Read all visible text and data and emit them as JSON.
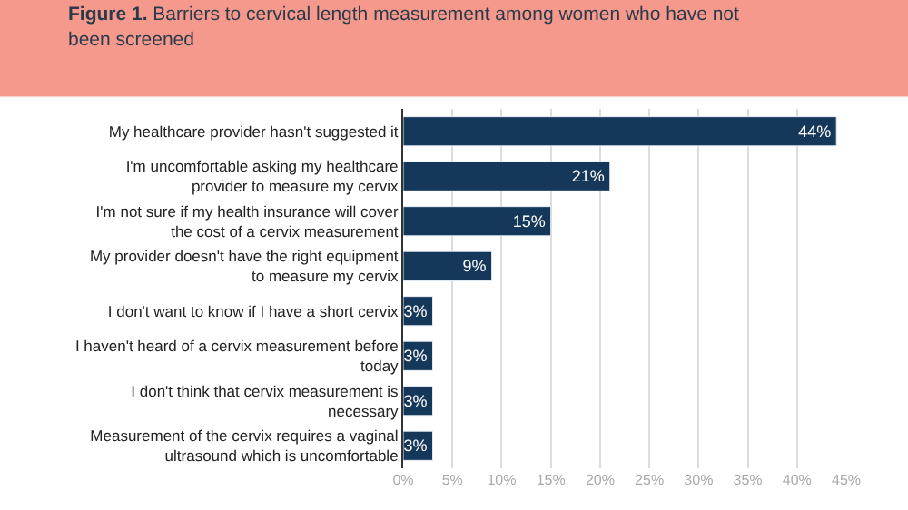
{
  "chart_data": {
    "type": "bar",
    "orientation": "horizontal",
    "title": "Figure 1. Barriers to cervical length measurement among women who have not been screened",
    "categories": [
      "My healthcare provider hasn't suggested it",
      "I'm uncomfortable asking my healthcare provider to measure my cervix",
      "I'm not sure if my health insurance will cover the cost of a cervix measurement",
      "My provider doesn't have the right equipment to measure my cervix",
      "I don't want to know if I have a short cervix",
      "I haven't heard of a cervix measurement before today",
      "I don't think that cervix measurement is necessary",
      "Measurement of the cervix requires a vaginal ultrasound which is uncomfortable"
    ],
    "values": [
      44,
      21,
      15,
      9,
      3,
      3,
      3,
      3
    ],
    "color": "#14375a",
    "value_labels": [
      "44%",
      "21%",
      "15%",
      "9%",
      "3%",
      "3%",
      "3%",
      "3%"
    ],
    "xlim": [
      0,
      45
    ],
    "xticks": [
      {
        "value": 0,
        "label": "0%"
      },
      {
        "value": 5,
        "label": "5%"
      },
      {
        "value": 10,
        "label": "10%"
      },
      {
        "value": 15,
        "label": "15%"
      },
      {
        "value": 20,
        "label": "20%"
      },
      {
        "value": 25,
        "label": "25%"
      },
      {
        "value": 30,
        "label": "30%"
      },
      {
        "value": 35,
        "label": "35%"
      },
      {
        "value": 40,
        "label": "40%"
      },
      {
        "value": 45,
        "label": "45%"
      }
    ],
    "grid": "x"
  }
}
